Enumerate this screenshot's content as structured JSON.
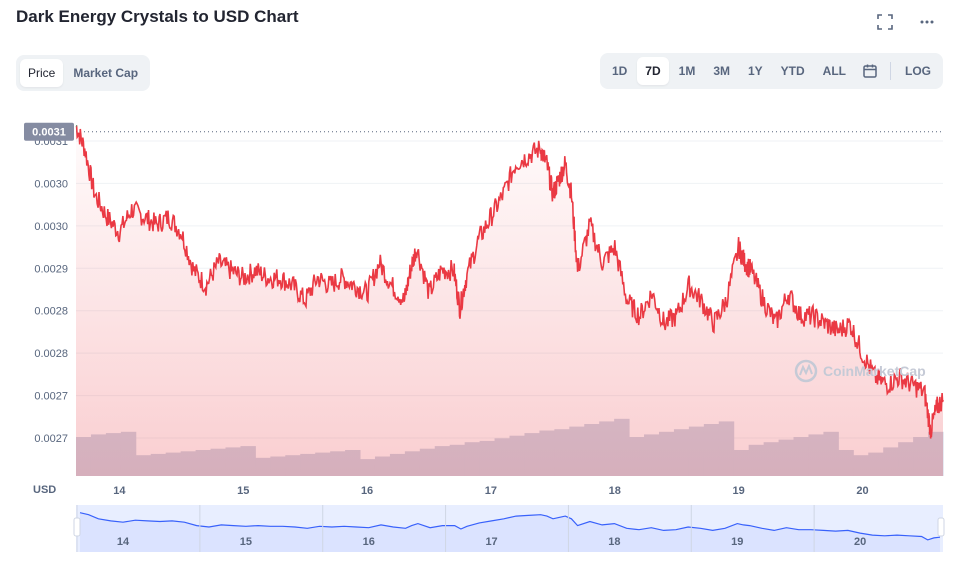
{
  "title": "Dark Energy Crystals to USD Chart",
  "icons": {
    "fullscreen": "fullscreen-icon",
    "more": "more-icon",
    "calendar": "calendar-icon",
    "watermark": "coinmarketcap-logo"
  },
  "tabs_left": [
    {
      "label": "Price",
      "active": true
    },
    {
      "label": "Market Cap",
      "active": false
    }
  ],
  "ranges": [
    {
      "label": "1D",
      "active": false
    },
    {
      "label": "7D",
      "active": true
    },
    {
      "label": "1M",
      "active": false
    },
    {
      "label": "3M",
      "active": false
    },
    {
      "label": "1Y",
      "active": false
    },
    {
      "label": "YTD",
      "active": false
    },
    {
      "label": "ALL",
      "active": false
    }
  ],
  "log_label": "LOG",
  "watermark_text": "CoinMarketCap",
  "colors": {
    "up": "#16c784",
    "down": "#ea3943",
    "volume": "#cfd6e4",
    "navigator": "#3861fb",
    "accent": "#3861fb"
  },
  "chart_data": {
    "type": "line",
    "title": "Dark Energy Crystals to USD Chart",
    "currency_label": "USD",
    "current_price_label": "0.0031",
    "y_ticks": [
      "0.0031",
      "0.0030",
      "0.0030",
      "0.0029",
      "0.0028",
      "0.0028",
      "0.0027",
      "0.0027"
    ],
    "x_ticks": [
      "14",
      "15",
      "16",
      "17",
      "18",
      "19",
      "20"
    ],
    "ylim": [
      0.00265,
      0.00312
    ],
    "xlim": [
      13.65,
      20.65
    ],
    "reference_value": 0.003102,
    "series": [
      {
        "x": [
          13.65,
          13.72,
          13.8,
          13.9,
          14.0,
          14.1,
          14.2,
          14.3,
          14.4,
          14.5,
          14.6,
          14.7,
          14.8,
          14.9,
          15.0,
          15.1,
          15.2,
          15.3,
          15.4,
          15.5,
          15.6,
          15.7,
          15.8,
          15.9,
          16.0,
          16.1,
          16.2,
          16.3,
          16.35,
          16.4,
          16.5,
          16.6,
          16.7,
          16.75,
          16.8,
          16.9,
          17.0,
          17.1,
          17.2,
          17.3,
          17.4,
          17.45,
          17.5,
          17.55,
          17.6,
          17.65,
          17.7,
          17.8,
          17.9,
          18.0,
          18.1,
          18.2,
          18.3,
          18.4,
          18.5,
          18.6,
          18.7,
          18.8,
          18.9,
          19.0,
          19.05,
          19.1,
          19.2,
          19.3,
          19.4,
          19.5,
          19.6,
          19.7,
          19.8,
          19.9,
          20.0,
          20.1,
          20.2,
          20.3,
          20.4,
          20.5,
          20.55,
          20.6,
          20.65
        ],
        "y": [
          0.00311,
          0.00308,
          0.00302,
          0.00299,
          0.00297,
          0.003,
          0.00299,
          0.00298,
          0.00299,
          0.00297,
          0.00292,
          0.0029,
          0.00293,
          0.00292,
          0.00291,
          0.00292,
          0.00291,
          0.00291,
          0.0029,
          0.00288,
          0.00291,
          0.0029,
          0.00291,
          0.0029,
          0.00289,
          0.00293,
          0.0029,
          0.00288,
          0.00292,
          0.00295,
          0.00289,
          0.00292,
          0.00292,
          0.00287,
          0.00291,
          0.00296,
          0.00299,
          0.00302,
          0.00306,
          0.00307,
          0.00308,
          0.00306,
          0.00302,
          0.00304,
          0.00306,
          0.00302,
          0.00292,
          0.00298,
          0.00293,
          0.00295,
          0.00288,
          0.00286,
          0.00289,
          0.00285,
          0.00286,
          0.0029,
          0.00288,
          0.00285,
          0.00288,
          0.00295,
          0.00293,
          0.00292,
          0.00288,
          0.00285,
          0.00289,
          0.00286,
          0.00286,
          0.00285,
          0.00284,
          0.00285,
          0.00281,
          0.00278,
          0.00277,
          0.00278,
          0.00277,
          0.00276,
          0.00271,
          0.00274,
          0.00275
        ]
      }
    ],
    "volume": [
      0.3,
      0.32,
      0.33,
      0.34,
      0.16,
      0.17,
      0.18,
      0.19,
      0.2,
      0.21,
      0.22,
      0.23,
      0.14,
      0.15,
      0.16,
      0.17,
      0.18,
      0.19,
      0.2,
      0.13,
      0.15,
      0.17,
      0.19,
      0.21,
      0.23,
      0.24,
      0.26,
      0.27,
      0.29,
      0.31,
      0.33,
      0.35,
      0.36,
      0.38,
      0.4,
      0.42,
      0.44,
      0.3,
      0.32,
      0.34,
      0.36,
      0.38,
      0.4,
      0.42,
      0.2,
      0.24,
      0.26,
      0.28,
      0.3,
      0.32,
      0.34,
      0.2,
      0.16,
      0.18,
      0.22,
      0.26,
      0.3,
      0.34
    ]
  }
}
